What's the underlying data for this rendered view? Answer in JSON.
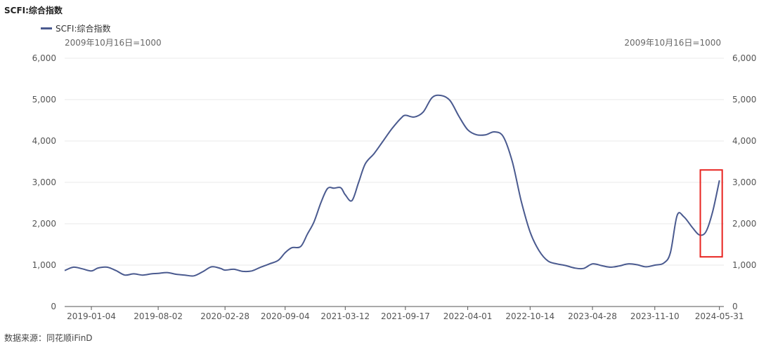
{
  "title": "SCFI:综合指数",
  "legend": {
    "label": "SCFI:综合指数"
  },
  "unit_note_left": "2009年10月16日=1000",
  "unit_note_right": "2009年10月16日=1000",
  "source": "数据来源：同花顺iFinD",
  "colors": {
    "line": "#4a5a8f",
    "highlight": "#e8231f",
    "grid": "#e9e9e9",
    "axis": "#555555"
  },
  "chart_data": {
    "type": "line",
    "title": "SCFI:综合指数",
    "ylim": [
      0,
      6000
    ],
    "yticks": [
      "0",
      "1,000",
      "2,000",
      "3,000",
      "4,000",
      "5,000",
      "6,000"
    ],
    "xticks": [
      "2019-01-04",
      "2019-08-02",
      "2020-02-28",
      "2020-09-04",
      "2021-03-12",
      "2021-09-17",
      "2022-04-01",
      "2022-10-14",
      "2023-04-28",
      "2023-11-10",
      "2024-05-31"
    ],
    "grid": true,
    "legend_position": "top-left",
    "highlight": {
      "from": "2024-04-01",
      "to": "2024-05-31",
      "y_range": [
        1200,
        3300
      ]
    },
    "series": [
      {
        "name": "SCFI:综合指数",
        "points": [
          [
            "2018-10-12",
            870
          ],
          [
            "2018-11-09",
            950
          ],
          [
            "2018-12-07",
            910
          ],
          [
            "2019-01-04",
            860
          ],
          [
            "2019-01-25",
            930
          ],
          [
            "2019-02-22",
            950
          ],
          [
            "2019-03-22",
            870
          ],
          [
            "2019-04-19",
            760
          ],
          [
            "2019-05-17",
            790
          ],
          [
            "2019-06-14",
            760
          ],
          [
            "2019-07-12",
            790
          ],
          [
            "2019-08-02",
            800
          ],
          [
            "2019-08-30",
            820
          ],
          [
            "2019-09-27",
            780
          ],
          [
            "2019-10-25",
            760
          ],
          [
            "2019-11-22",
            740
          ],
          [
            "2019-12-20",
            840
          ],
          [
            "2020-01-17",
            960
          ],
          [
            "2020-02-14",
            920
          ],
          [
            "2020-02-28",
            880
          ],
          [
            "2020-03-27",
            900
          ],
          [
            "2020-04-24",
            850
          ],
          [
            "2020-05-22",
            860
          ],
          [
            "2020-06-19",
            950
          ],
          [
            "2020-07-17",
            1030
          ],
          [
            "2020-08-14",
            1120
          ],
          [
            "2020-09-04",
            1300
          ],
          [
            "2020-09-25",
            1420
          ],
          [
            "2020-10-23",
            1450
          ],
          [
            "2020-11-13",
            1750
          ],
          [
            "2020-12-04",
            2050
          ],
          [
            "2020-12-25",
            2500
          ],
          [
            "2021-01-15",
            2850
          ],
          [
            "2021-02-05",
            2860
          ],
          [
            "2021-02-26",
            2870
          ],
          [
            "2021-03-12",
            2700
          ],
          [
            "2021-04-02",
            2560
          ],
          [
            "2021-04-23",
            3000
          ],
          [
            "2021-05-14",
            3450
          ],
          [
            "2021-06-11",
            3700
          ],
          [
            "2021-07-09",
            4000
          ],
          [
            "2021-08-06",
            4300
          ],
          [
            "2021-09-03",
            4550
          ],
          [
            "2021-09-17",
            4620
          ],
          [
            "2021-10-15",
            4580
          ],
          [
            "2021-11-12",
            4700
          ],
          [
            "2021-12-10",
            5050
          ],
          [
            "2022-01-07",
            5100
          ],
          [
            "2022-02-04",
            4980
          ],
          [
            "2022-03-04",
            4600
          ],
          [
            "2022-04-01",
            4270
          ],
          [
            "2022-04-29",
            4150
          ],
          [
            "2022-05-27",
            4150
          ],
          [
            "2022-06-24",
            4220
          ],
          [
            "2022-07-22",
            4100
          ],
          [
            "2022-08-19",
            3500
          ],
          [
            "2022-09-16",
            2550
          ],
          [
            "2022-10-14",
            1800
          ],
          [
            "2022-11-11",
            1350
          ],
          [
            "2022-12-09",
            1100
          ],
          [
            "2023-01-06",
            1030
          ],
          [
            "2023-02-03",
            990
          ],
          [
            "2023-03-03",
            930
          ],
          [
            "2023-03-31",
            920
          ],
          [
            "2023-04-28",
            1030
          ],
          [
            "2023-05-26",
            990
          ],
          [
            "2023-06-23",
            950
          ],
          [
            "2023-07-21",
            980
          ],
          [
            "2023-08-18",
            1030
          ],
          [
            "2023-09-15",
            1010
          ],
          [
            "2023-10-13",
            960
          ],
          [
            "2023-11-10",
            1000
          ],
          [
            "2023-12-08",
            1050
          ],
          [
            "2023-12-29",
            1300
          ],
          [
            "2024-01-19",
            2200
          ],
          [
            "2024-02-09",
            2170
          ],
          [
            "2024-03-08",
            1900
          ],
          [
            "2024-03-29",
            1730
          ],
          [
            "2024-04-19",
            1810
          ],
          [
            "2024-05-10",
            2300
          ],
          [
            "2024-05-31",
            3050
          ]
        ]
      }
    ]
  }
}
